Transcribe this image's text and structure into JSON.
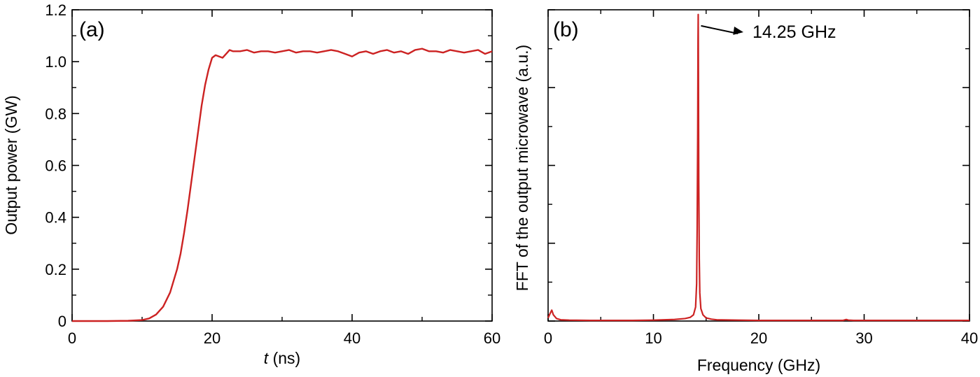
{
  "chart_data": [
    {
      "type": "line",
      "panel_label": "(a)",
      "xlabel_italic": "t",
      "xlabel_rest": " (ns)",
      "ylabel": "Output power (GW)",
      "xlim": [
        0,
        60
      ],
      "ylim": [
        0,
        1.2
      ],
      "xticks": [
        "0",
        "20",
        "40",
        "60"
      ],
      "yticks": [
        "0",
        "0.2",
        "0.4",
        "0.6",
        "0.8",
        "1.0",
        "1.2"
      ],
      "line_color": "#cc2222",
      "series": [
        {
          "x": [
            0,
            5,
            8,
            10,
            11,
            12,
            13,
            14,
            15,
            15.5,
            16,
            16.5,
            17,
            17.5,
            18,
            18.5,
            19,
            19.5,
            20,
            20.5,
            21,
            21.5,
            22,
            22.5,
            23,
            24,
            25,
            26,
            27,
            28,
            29,
            30,
            31,
            32,
            33,
            34,
            35,
            36,
            37,
            38,
            39,
            40,
            41,
            42,
            43,
            44,
            45,
            46,
            47,
            48,
            49,
            50,
            51,
            52,
            53,
            54,
            55,
            56,
            57,
            58,
            59,
            60
          ],
          "y": [
            0,
            0,
            0.001,
            0.004,
            0.01,
            0.025,
            0.055,
            0.11,
            0.2,
            0.26,
            0.34,
            0.43,
            0.53,
            0.63,
            0.73,
            0.83,
            0.91,
            0.97,
            1.015,
            1.025,
            1.02,
            1.015,
            1.03,
            1.045,
            1.04,
            1.04,
            1.045,
            1.035,
            1.04,
            1.04,
            1.035,
            1.04,
            1.045,
            1.035,
            1.04,
            1.04,
            1.035,
            1.04,
            1.045,
            1.04,
            1.03,
            1.02,
            1.035,
            1.04,
            1.03,
            1.04,
            1.045,
            1.035,
            1.04,
            1.03,
            1.045,
            1.05,
            1.04,
            1.04,
            1.035,
            1.045,
            1.04,
            1.035,
            1.04,
            1.045,
            1.03,
            1.04
          ]
        }
      ]
    },
    {
      "type": "line",
      "panel_label": "(b)",
      "xlabel": "Frequency (GHz)",
      "ylabel": "FFT of the output microwave (a.u.)",
      "xlim": [
        0,
        40
      ],
      "ylim": [
        0,
        1.0
      ],
      "xticks": [
        "0",
        "10",
        "20",
        "30",
        "40"
      ],
      "line_color": "#cc2222",
      "annotation": {
        "text": "14.25 GHz",
        "x": 14.25,
        "y": 0.98
      },
      "series": [
        {
          "x": [
            0,
            0.2,
            0.35,
            0.5,
            0.8,
            1.2,
            2,
            4,
            6,
            8,
            10,
            11,
            12,
            13,
            13.5,
            13.8,
            14.0,
            14.1,
            14.15,
            14.2,
            14.23,
            14.25,
            14.27,
            14.3,
            14.35,
            14.4,
            14.5,
            14.7,
            15,
            15.5,
            16,
            18,
            20,
            24,
            28,
            28.3,
            28.5,
            29,
            32,
            36,
            40
          ],
          "y": [
            0.01,
            0.025,
            0.035,
            0.02,
            0.008,
            0.004,
            0.003,
            0.002,
            0.002,
            0.002,
            0.003,
            0.004,
            0.005,
            0.008,
            0.012,
            0.02,
            0.045,
            0.12,
            0.3,
            0.6,
            0.9,
            0.985,
            0.8,
            0.45,
            0.2,
            0.09,
            0.04,
            0.02,
            0.01,
            0.006,
            0.004,
            0.003,
            0.002,
            0.002,
            0.002,
            0.005,
            0.003,
            0.002,
            0.002,
            0.002,
            0.002
          ]
        }
      ]
    }
  ]
}
